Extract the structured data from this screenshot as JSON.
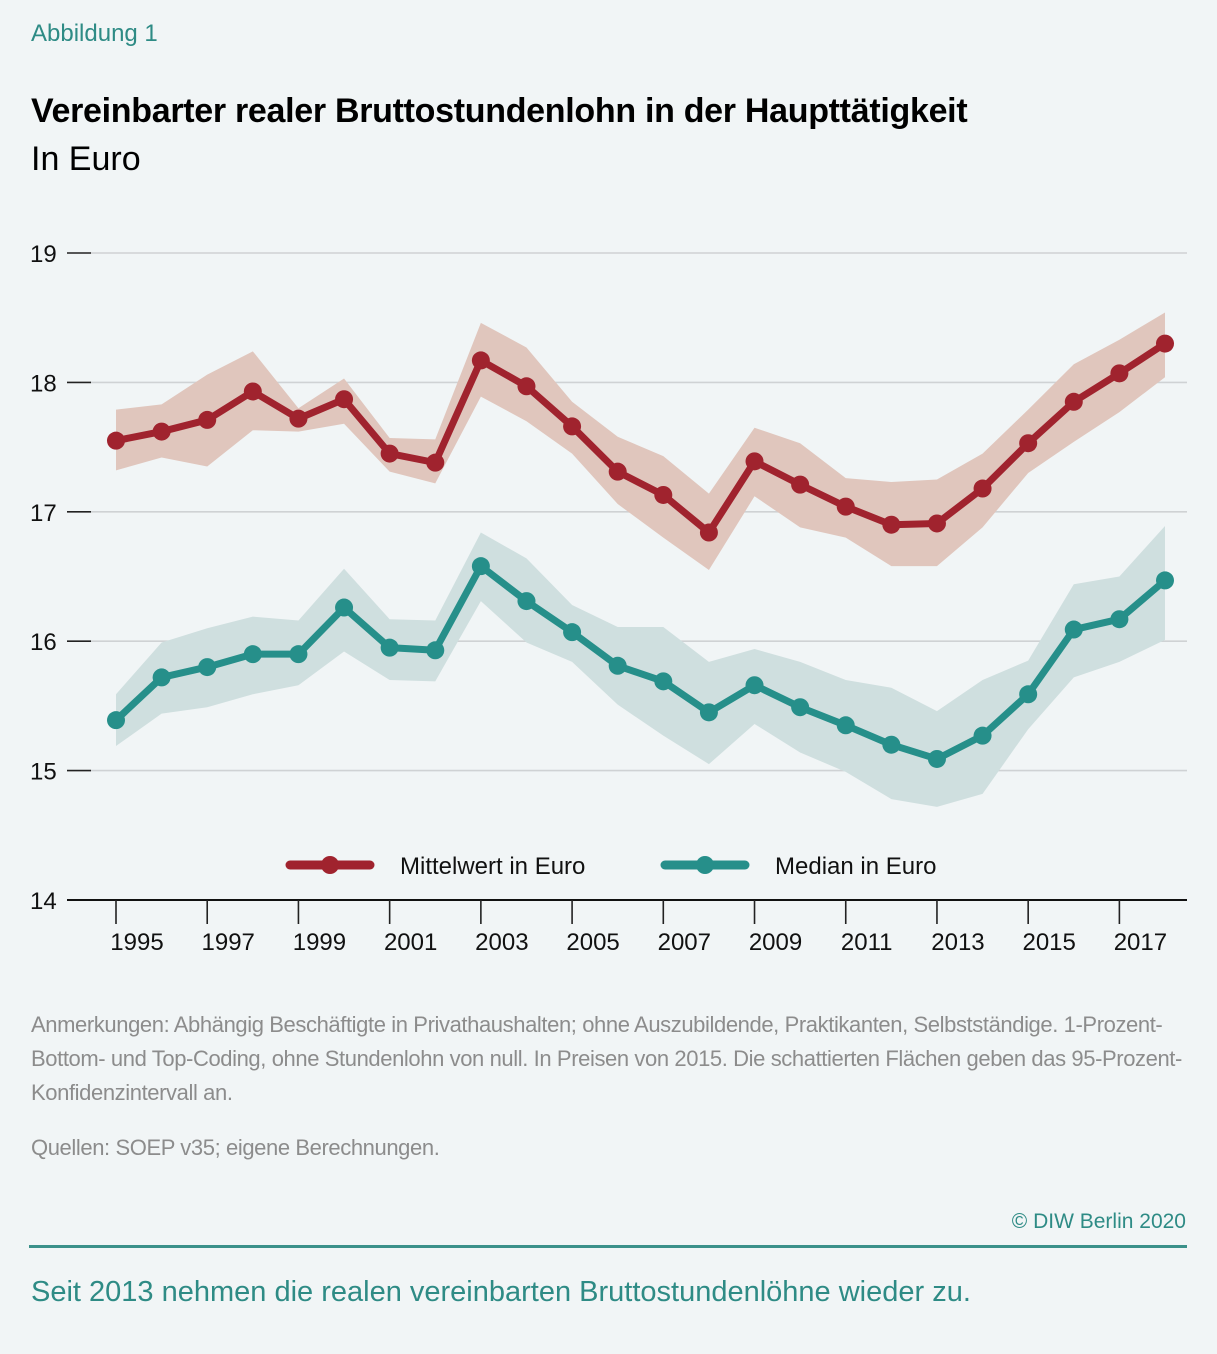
{
  "header": {
    "figure_label": "Abbildung 1",
    "title": "Vereinbarter realer Bruttostundenlohn in der Haupttätigkeit",
    "subtitle": "In Euro"
  },
  "footer": {
    "notes": "Anmerkungen: Abhängig Beschäftigte in Privathaushalten; ohne Auszubildende, Praktikanten, Selbstständige. 1-Prozent-Bottom- und Top-Coding, ohne Stundenlohn von null. In Preisen von 2015. Die schattierten Flächen geben das 95-Prozent-Konfidenzintervall an.",
    "sources": "Quellen: SOEP v35; eigene Berechnungen.",
    "copyright": "© DIW Berlin 2020",
    "takeaway": "Seit 2013 nehmen die realen vereinbarten Bruttostundenlöhne wieder zu."
  },
  "colors": {
    "mean_line": "#a0232e",
    "mean_band": "#e0c6bd",
    "median_line": "#268f8a",
    "median_band": "#cfdfdf",
    "accent": "#2e8b85",
    "grid": "#cfd2d4"
  },
  "chart_data": {
    "type": "line",
    "title": "Vereinbarter realer Bruttostundenlohn in der Haupttätigkeit",
    "subtitle": "In Euro",
    "xlabel": "",
    "ylabel": "In Euro",
    "ylim": [
      14,
      19
    ],
    "yticks": [
      14,
      15,
      16,
      17,
      18,
      19
    ],
    "xlim": [
      1994.5,
      2018.5
    ],
    "xticks": [
      1995,
      1997,
      1999,
      2001,
      2003,
      2005,
      2007,
      2009,
      2011,
      2013,
      2015,
      2017
    ],
    "grid": true,
    "legend_position": "bottom-center",
    "x": [
      1995,
      1996,
      1997,
      1998,
      1999,
      2000,
      2001,
      2002,
      2003,
      2004,
      2005,
      2006,
      2007,
      2008,
      2009,
      2010,
      2011,
      2012,
      2013,
      2014,
      2015,
      2016,
      2017,
      2018
    ],
    "series": [
      {
        "name": "Mittelwert in Euro",
        "values": [
          17.55,
          17.62,
          17.71,
          17.93,
          17.72,
          17.87,
          17.45,
          17.38,
          18.17,
          17.97,
          17.66,
          17.31,
          17.13,
          16.84,
          17.39,
          17.21,
          17.04,
          16.9,
          16.91,
          17.18,
          17.53,
          17.85,
          18.07,
          18.3
        ],
        "ci_upper": [
          17.79,
          17.83,
          18.06,
          18.24,
          17.8,
          18.03,
          17.57,
          17.56,
          18.46,
          18.27,
          17.85,
          17.58,
          17.43,
          17.14,
          17.65,
          17.53,
          17.26,
          17.23,
          17.25,
          17.45,
          17.79,
          18.14,
          18.33,
          18.54
        ],
        "ci_lower": [
          17.32,
          17.42,
          17.35,
          17.63,
          17.62,
          17.68,
          17.31,
          17.22,
          17.89,
          17.7,
          17.45,
          17.06,
          16.8,
          16.55,
          17.12,
          16.88,
          16.8,
          16.58,
          16.58,
          16.88,
          17.3,
          17.54,
          17.77,
          18.04
        ]
      },
      {
        "name": "Median in Euro",
        "values": [
          15.39,
          15.72,
          15.8,
          15.9,
          15.9,
          16.26,
          15.95,
          15.93,
          16.58,
          16.31,
          16.07,
          15.81,
          15.69,
          15.45,
          15.66,
          15.49,
          15.35,
          15.2,
          15.09,
          15.27,
          15.59,
          16.09,
          16.17,
          16.47
        ],
        "ci_upper": [
          15.59,
          15.99,
          16.1,
          16.19,
          16.16,
          16.56,
          16.17,
          16.16,
          16.84,
          16.64,
          16.28,
          16.11,
          16.11,
          15.84,
          15.94,
          15.84,
          15.7,
          15.64,
          15.46,
          15.7,
          15.85,
          16.44,
          16.5,
          16.89
        ],
        "ci_lower": [
          15.19,
          15.44,
          15.49,
          15.59,
          15.66,
          15.92,
          15.7,
          15.69,
          16.31,
          15.99,
          15.84,
          15.51,
          15.27,
          15.05,
          15.36,
          15.14,
          14.99,
          14.78,
          14.72,
          14.82,
          15.32,
          15.72,
          15.84,
          16.01
        ]
      }
    ]
  }
}
